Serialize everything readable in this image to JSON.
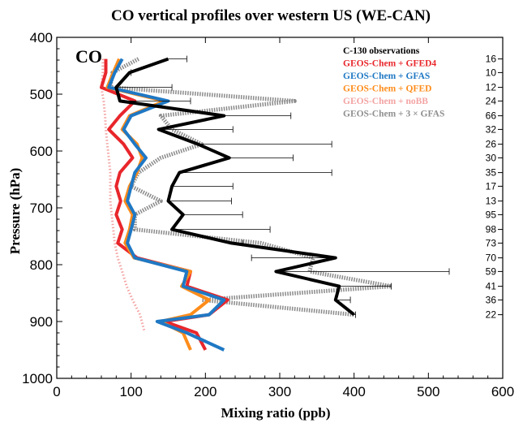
{
  "chart_data": {
    "type": "line",
    "title": "CO vertical profiles over western US (WE-CAN)",
    "xlabel": "Mixing ratio (ppb)",
    "ylabel": "Pressure (hPa)",
    "annotation": "CO",
    "xlim": [
      0,
      600
    ],
    "ylim": [
      1000,
      400
    ],
    "y_inverted": true,
    "xticks": [
      "0",
      "100",
      "200",
      "300",
      "400",
      "500",
      "600"
    ],
    "yticks": [
      "400",
      "500",
      "600",
      "700",
      "800",
      "900",
      "1000"
    ],
    "legend_position": "top-right",
    "right_axis_counts": [
      {
        "p": 438,
        "n": "16"
      },
      {
        "p": 462,
        "n": "10"
      },
      {
        "p": 488,
        "n": "12"
      },
      {
        "p": 512,
        "n": "24"
      },
      {
        "p": 538,
        "n": "66"
      },
      {
        "p": 562,
        "n": "32"
      },
      {
        "p": 588,
        "n": "26"
      },
      {
        "p": 612,
        "n": "30"
      },
      {
        "p": 638,
        "n": "35"
      },
      {
        "p": 662,
        "n": "17"
      },
      {
        "p": 688,
        "n": "13"
      },
      {
        "p": 712,
        "n": "95"
      },
      {
        "p": 738,
        "n": "98"
      },
      {
        "p": 762,
        "n": "73"
      },
      {
        "p": 788,
        "n": "70"
      },
      {
        "p": 812,
        "n": "59"
      },
      {
        "p": 838,
        "n": "41"
      },
      {
        "p": 862,
        "n": "36"
      },
      {
        "p": 888,
        "n": "22"
      }
    ],
    "series": [
      {
        "name": "C-130 observations",
        "color": "#000000",
        "style": "solid-thick",
        "points": [
          [
            150,
            438
          ],
          [
            98,
            462
          ],
          [
            80,
            488
          ],
          [
            85,
            512
          ],
          [
            225,
            538
          ],
          [
            137,
            562
          ],
          [
            190,
            588
          ],
          [
            232,
            612
          ],
          [
            165,
            638
          ],
          [
            155,
            662
          ],
          [
            150,
            688
          ],
          [
            170,
            712
          ],
          [
            155,
            738
          ],
          [
            235,
            762
          ],
          [
            375,
            788
          ],
          [
            295,
            812
          ],
          [
            380,
            838
          ],
          [
            375,
            862
          ],
          [
            400,
            888
          ]
        ],
        "error_upper": [
          [
            150,
            175
          ],
          [
            98,
            100
          ],
          [
            80,
            155
          ],
          [
            85,
            180
          ],
          [
            225,
            315
          ],
          [
            137,
            237
          ],
          [
            190,
            370
          ],
          [
            232,
            318
          ],
          [
            165,
            370
          ],
          [
            155,
            237
          ],
          [
            150,
            235
          ],
          [
            170,
            250
          ],
          [
            155,
            287
          ],
          [
            235,
            250
          ],
          [
            375,
            262
          ],
          [
            295,
            528
          ],
          [
            380,
            450
          ],
          [
            375,
            395
          ],
          [
            400,
            402
          ]
        ]
      },
      {
        "name": "GEOS-Chem + GFED4",
        "color": "#e8262b",
        "style": "solid",
        "points": [
          [
            66,
            438
          ],
          [
            66,
            462
          ],
          [
            60,
            488
          ],
          [
            105,
            512
          ],
          [
            85,
            538
          ],
          [
            70,
            562
          ],
          [
            90,
            588
          ],
          [
            102,
            612
          ],
          [
            85,
            638
          ],
          [
            80,
            662
          ],
          [
            86,
            688
          ],
          [
            80,
            712
          ],
          [
            88,
            738
          ],
          [
            82,
            762
          ],
          [
            108,
            788
          ],
          [
            180,
            812
          ],
          [
            175,
            838
          ],
          [
            230,
            862
          ],
          [
            205,
            888
          ],
          [
            145,
            900
          ],
          [
            188,
            920
          ],
          [
            200,
            950
          ]
        ]
      },
      {
        "name": "GEOS-Chem + GFAS",
        "color": "#1f78c4",
        "style": "solid",
        "points": [
          [
            88,
            438
          ],
          [
            78,
            462
          ],
          [
            70,
            488
          ],
          [
            150,
            512
          ],
          [
            100,
            538
          ],
          [
            90,
            562
          ],
          [
            105,
            588
          ],
          [
            120,
            612
          ],
          [
            105,
            638
          ],
          [
            100,
            662
          ],
          [
            95,
            688
          ],
          [
            105,
            712
          ],
          [
            100,
            738
          ],
          [
            95,
            762
          ],
          [
            105,
            788
          ],
          [
            175,
            812
          ],
          [
            170,
            838
          ],
          [
            225,
            862
          ],
          [
            205,
            888
          ],
          [
            135,
            900
          ],
          [
            175,
            920
          ],
          [
            225,
            950
          ]
        ]
      },
      {
        "name": "GEOS-Chem + QFED",
        "color": "#ff8c1a",
        "style": "solid",
        "points": [
          [
            84,
            438
          ],
          [
            76,
            462
          ],
          [
            68,
            488
          ],
          [
            145,
            512
          ],
          [
            98,
            538
          ],
          [
            88,
            562
          ],
          [
            108,
            588
          ],
          [
            115,
            612
          ],
          [
            108,
            638
          ],
          [
            98,
            662
          ],
          [
            92,
            688
          ],
          [
            102,
            712
          ],
          [
            98,
            738
          ],
          [
            92,
            762
          ],
          [
            104,
            788
          ],
          [
            180,
            812
          ],
          [
            168,
            838
          ],
          [
            205,
            862
          ],
          [
            180,
            888
          ],
          [
            140,
            900
          ],
          [
            170,
            920
          ],
          [
            180,
            950
          ]
        ]
      },
      {
        "name": "GEOS-Chem + noBB",
        "color": "#f4a3a3",
        "style": "dotted",
        "points": [
          [
            62,
            438
          ],
          [
            62,
            462
          ],
          [
            60,
            488
          ],
          [
            63,
            512
          ],
          [
            65,
            538
          ],
          [
            66,
            562
          ],
          [
            68,
            588
          ],
          [
            70,
            612
          ],
          [
            72,
            638
          ],
          [
            72,
            662
          ],
          [
            72,
            688
          ],
          [
            74,
            712
          ],
          [
            76,
            738
          ],
          [
            78,
            762
          ],
          [
            82,
            788
          ],
          [
            88,
            812
          ],
          [
            94,
            838
          ],
          [
            102,
            862
          ],
          [
            112,
            888
          ],
          [
            118,
            918
          ]
        ]
      },
      {
        "name": "GEOS-Chem + 3 × GFAS",
        "color": "#8a8a8a",
        "style": "hatched",
        "points": [
          [
            110,
            438
          ],
          [
            75,
            462
          ],
          [
            72,
            488
          ],
          [
            320,
            512
          ],
          [
            140,
            538
          ],
          [
            155,
            562
          ],
          [
            195,
            588
          ],
          [
            140,
            612
          ],
          [
            110,
            638
          ],
          [
            100,
            662
          ],
          [
            140,
            688
          ],
          [
            105,
            712
          ],
          [
            105,
            738
          ],
          [
            275,
            762
          ],
          [
            345,
            788
          ],
          [
            340,
            812
          ],
          [
            450,
            838
          ],
          [
            195,
            862
          ],
          [
            400,
            888
          ]
        ]
      }
    ]
  }
}
